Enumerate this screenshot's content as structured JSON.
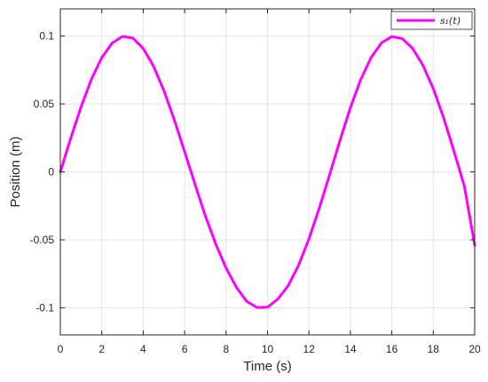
{
  "chart_data": {
    "type": "line",
    "xlabel": "Time (s)",
    "ylabel": "Position (m)",
    "xlim": [
      0,
      20
    ],
    "ylim": [
      -0.12,
      0.12
    ],
    "grid": true,
    "legend_placement": "top-right",
    "x_ticks": [
      0,
      2,
      4,
      6,
      8,
      10,
      12,
      14,
      16,
      18,
      20
    ],
    "x_tick_labels": [
      "0",
      "2",
      "4",
      "6",
      "8",
      "10",
      "12",
      "14",
      "16",
      "18",
      "20"
    ],
    "y_ticks": [
      0.1,
      0.05,
      0,
      -0.05,
      -0.1
    ],
    "y_tick_labels": [
      "0.1",
      "0.05",
      "0",
      "-0.05",
      "-0.1"
    ],
    "series": [
      {
        "name": "s₁(t)",
        "color": "#ff00ff",
        "x": [
          0,
          0.5,
          1,
          1.5,
          2,
          2.5,
          3,
          3.5,
          4,
          4.5,
          5,
          5.5,
          6,
          6.5,
          7,
          7.5,
          8,
          8.5,
          9,
          9.5,
          10,
          10.5,
          11,
          11.5,
          12,
          12.5,
          13,
          13.5,
          14,
          14.5,
          15,
          15.5,
          16,
          16.5,
          17,
          17.5,
          18,
          18.5,
          19,
          19.5,
          20
        ],
        "y": [
          0,
          0.0247,
          0.0479,
          0.0682,
          0.0841,
          0.0948,
          0.0997,
          0.0985,
          0.0909,
          0.0777,
          0.0598,
          0.0383,
          0.0148,
          -0.0092,
          -0.0324,
          -0.0531,
          -0.0708,
          -0.085,
          -0.0954,
          -0.0999,
          -0.0996,
          -0.0936,
          -0.0837,
          -0.0688,
          -0.0493,
          -0.0266,
          -0.0019,
          0.0233,
          0.0473,
          0.068,
          0.0842,
          0.095,
          0.0996,
          0.0981,
          0.091,
          0.0785,
          0.0614,
          0.0398,
          0.0152,
          -0.0104,
          -0.054
        ]
      }
    ]
  }
}
